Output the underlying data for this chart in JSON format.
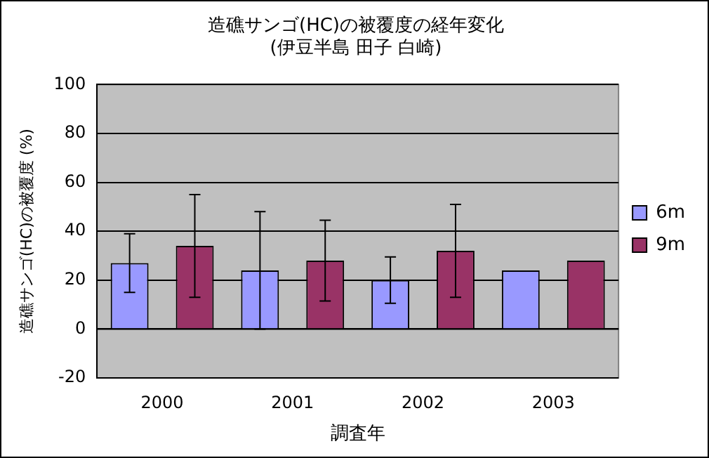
{
  "chart_data": {
    "type": "bar",
    "title": "造礁サンゴ(HC)の被覆度の経年変化",
    "subtitle": "(伊豆半島 田子 白崎)",
    "xlabel": "調査年",
    "ylabel": "造礁サンゴ(HC)の被覆度 (%)",
    "categories": [
      "2000",
      "2001",
      "2002",
      "2003"
    ],
    "series": [
      {
        "name": "6m",
        "color": "#9999ff",
        "values": [
          27,
          24,
          20,
          24
        ],
        "errors": [
          12,
          24,
          9.5,
          null
        ]
      },
      {
        "name": "9m",
        "color": "#993366",
        "values": [
          34,
          28,
          32,
          28
        ],
        "errors": [
          21,
          16.5,
          19,
          null
        ]
      }
    ],
    "ylim": [
      -20,
      100
    ],
    "yticks": [
      -20,
      0,
      20,
      40,
      60,
      80,
      100
    ],
    "grid": "y",
    "legend": "right"
  }
}
